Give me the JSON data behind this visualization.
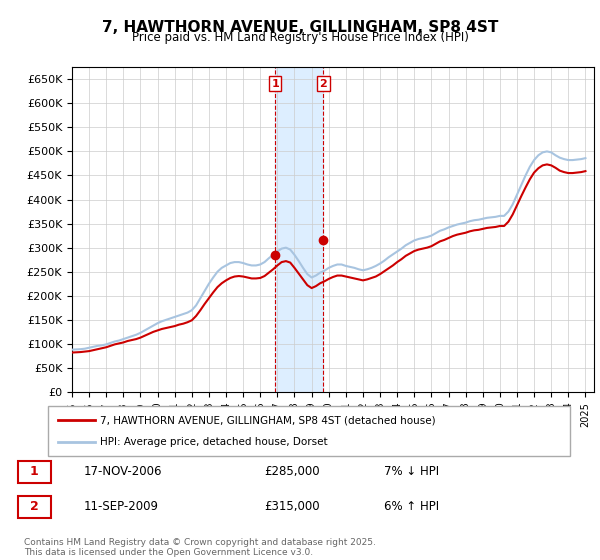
{
  "title": "7, HAWTHORN AVENUE, GILLINGHAM, SP8 4ST",
  "subtitle": "Price paid vs. HM Land Registry's House Price Index (HPI)",
  "ylabel": "",
  "ylim": [
    0,
    675000
  ],
  "yticks": [
    0,
    50000,
    100000,
    150000,
    200000,
    250000,
    300000,
    350000,
    400000,
    450000,
    500000,
    550000,
    600000,
    650000
  ],
  "xlim_start": 1995.0,
  "xlim_end": 2025.5,
  "hpi_color": "#a8c4e0",
  "price_color": "#cc0000",
  "shading_color": "#ddeeff",
  "background_color": "#f5f5f5",
  "transaction1": {
    "date": "17-NOV-2006",
    "price": 285000,
    "label": "1",
    "year": 2006.88,
    "hpi_diff": "7% ↓ HPI"
  },
  "transaction2": {
    "date": "11-SEP-2009",
    "price": 315000,
    "label": "2",
    "year": 2009.69,
    "hpi_diff": "6% ↑ HPI"
  },
  "legend_line1": "7, HAWTHORN AVENUE, GILLINGHAM, SP8 4ST (detached house)",
  "legend_line2": "HPI: Average price, detached house, Dorset",
  "footer": "Contains HM Land Registry data © Crown copyright and database right 2025.\nThis data is licensed under the Open Government Licence v3.0.",
  "hpi_data": {
    "years": [
      1995.0,
      1995.25,
      1995.5,
      1995.75,
      1996.0,
      1996.25,
      1996.5,
      1996.75,
      1997.0,
      1997.25,
      1997.5,
      1997.75,
      1998.0,
      1998.25,
      1998.5,
      1998.75,
      1999.0,
      1999.25,
      1999.5,
      1999.75,
      2000.0,
      2000.25,
      2000.5,
      2000.75,
      2001.0,
      2001.25,
      2001.5,
      2001.75,
      2002.0,
      2002.25,
      2002.5,
      2002.75,
      2003.0,
      2003.25,
      2003.5,
      2003.75,
      2004.0,
      2004.25,
      2004.5,
      2004.75,
      2005.0,
      2005.25,
      2005.5,
      2005.75,
      2006.0,
      2006.25,
      2006.5,
      2006.75,
      2007.0,
      2007.25,
      2007.5,
      2007.75,
      2008.0,
      2008.25,
      2008.5,
      2008.75,
      2009.0,
      2009.25,
      2009.5,
      2009.75,
      2010.0,
      2010.25,
      2010.5,
      2010.75,
      2011.0,
      2011.25,
      2011.5,
      2011.75,
      2012.0,
      2012.25,
      2012.5,
      2012.75,
      2013.0,
      2013.25,
      2013.5,
      2013.75,
      2014.0,
      2014.25,
      2014.5,
      2014.75,
      2015.0,
      2015.25,
      2015.5,
      2015.75,
      2016.0,
      2016.25,
      2016.5,
      2016.75,
      2017.0,
      2017.25,
      2017.5,
      2017.75,
      2018.0,
      2018.25,
      2018.5,
      2018.75,
      2019.0,
      2019.25,
      2019.5,
      2019.75,
      2020.0,
      2020.25,
      2020.5,
      2020.75,
      2021.0,
      2021.25,
      2021.5,
      2021.75,
      2022.0,
      2022.25,
      2022.5,
      2022.75,
      2023.0,
      2023.25,
      2023.5,
      2023.75,
      2024.0,
      2024.25,
      2024.5,
      2024.75,
      2025.0
    ],
    "values": [
      88000,
      88500,
      89000,
      90000,
      92000,
      94000,
      96000,
      97000,
      99000,
      102000,
      105000,
      107000,
      110000,
      113000,
      116000,
      119000,
      123000,
      128000,
      133000,
      138000,
      143000,
      147000,
      150000,
      153000,
      156000,
      159000,
      162000,
      165000,
      170000,
      180000,
      195000,
      210000,
      225000,
      238000,
      250000,
      258000,
      263000,
      268000,
      270000,
      270000,
      268000,
      265000,
      263000,
      263000,
      265000,
      270000,
      278000,
      285000,
      292000,
      298000,
      300000,
      296000,
      285000,
      272000,
      258000,
      245000,
      238000,
      242000,
      248000,
      252000,
      258000,
      262000,
      265000,
      265000,
      262000,
      260000,
      258000,
      255000,
      253000,
      255000,
      258000,
      262000,
      267000,
      273000,
      280000,
      286000,
      292000,
      298000,
      305000,
      310000,
      315000,
      318000,
      320000,
      322000,
      325000,
      330000,
      335000,
      338000,
      342000,
      345000,
      348000,
      350000,
      352000,
      355000,
      357000,
      358000,
      360000,
      362000,
      363000,
      364000,
      366000,
      366000,
      375000,
      390000,
      410000,
      430000,
      450000,
      468000,
      482000,
      492000,
      498000,
      500000,
      498000,
      492000,
      487000,
      484000,
      482000,
      482000,
      483000,
      484000,
      486000
    ]
  },
  "price_data": {
    "years": [
      1995.0,
      1995.25,
      1995.5,
      1995.75,
      1996.0,
      1996.25,
      1996.5,
      1996.75,
      1997.0,
      1997.25,
      1997.5,
      1997.75,
      1998.0,
      1998.25,
      1998.5,
      1998.75,
      1999.0,
      1999.25,
      1999.5,
      1999.75,
      2000.0,
      2000.25,
      2000.5,
      2000.75,
      2001.0,
      2001.25,
      2001.5,
      2001.75,
      2002.0,
      2002.25,
      2002.5,
      2002.75,
      2003.0,
      2003.25,
      2003.5,
      2003.75,
      2004.0,
      2004.25,
      2004.5,
      2004.75,
      2005.0,
      2005.25,
      2005.5,
      2005.75,
      2006.0,
      2006.25,
      2006.5,
      2006.75,
      2007.0,
      2007.25,
      2007.5,
      2007.75,
      2008.0,
      2008.25,
      2008.5,
      2008.75,
      2009.0,
      2009.25,
      2009.5,
      2009.75,
      2010.0,
      2010.25,
      2010.5,
      2010.75,
      2011.0,
      2011.25,
      2011.5,
      2011.75,
      2012.0,
      2012.25,
      2012.5,
      2012.75,
      2013.0,
      2013.25,
      2013.5,
      2013.75,
      2014.0,
      2014.25,
      2014.5,
      2014.75,
      2015.0,
      2015.25,
      2015.5,
      2015.75,
      2016.0,
      2016.25,
      2016.5,
      2016.75,
      2017.0,
      2017.25,
      2017.5,
      2017.75,
      2018.0,
      2018.25,
      2018.5,
      2018.75,
      2019.0,
      2019.25,
      2019.5,
      2019.75,
      2020.0,
      2020.25,
      2020.5,
      2020.75,
      2021.0,
      2021.25,
      2021.5,
      2021.75,
      2022.0,
      2022.25,
      2022.5,
      2022.75,
      2023.0,
      2023.25,
      2023.5,
      2023.75,
      2024.0,
      2024.25,
      2024.5,
      2024.75,
      2025.0
    ],
    "values": [
      82000,
      82500,
      83000,
      84000,
      85000,
      87000,
      89000,
      91000,
      93000,
      96000,
      99000,
      101000,
      103000,
      106000,
      108000,
      110000,
      113000,
      117000,
      121000,
      125000,
      128000,
      131000,
      133000,
      135000,
      137000,
      140000,
      142000,
      145000,
      149000,
      158000,
      170000,
      183000,
      195000,
      207000,
      218000,
      226000,
      232000,
      237000,
      240000,
      241000,
      240000,
      238000,
      236000,
      236000,
      237000,
      241000,
      248000,
      255000,
      263000,
      270000,
      272000,
      269000,
      258000,
      246000,
      234000,
      222000,
      216000,
      220000,
      226000,
      230000,
      235000,
      239000,
      242000,
      242000,
      240000,
      238000,
      236000,
      234000,
      232000,
      234000,
      237000,
      240000,
      245000,
      251000,
      257000,
      263000,
      270000,
      276000,
      283000,
      288000,
      293000,
      296000,
      298000,
      300000,
      303000,
      308000,
      313000,
      316000,
      320000,
      324000,
      327000,
      329000,
      331000,
      334000,
      336000,
      337000,
      339000,
      341000,
      342000,
      343000,
      345000,
      345000,
      354000,
      369000,
      388000,
      407000,
      425000,
      442000,
      456000,
      465000,
      471000,
      473000,
      471000,
      466000,
      460000,
      457000,
      455000,
      455000,
      456000,
      457000,
      459000
    ]
  }
}
